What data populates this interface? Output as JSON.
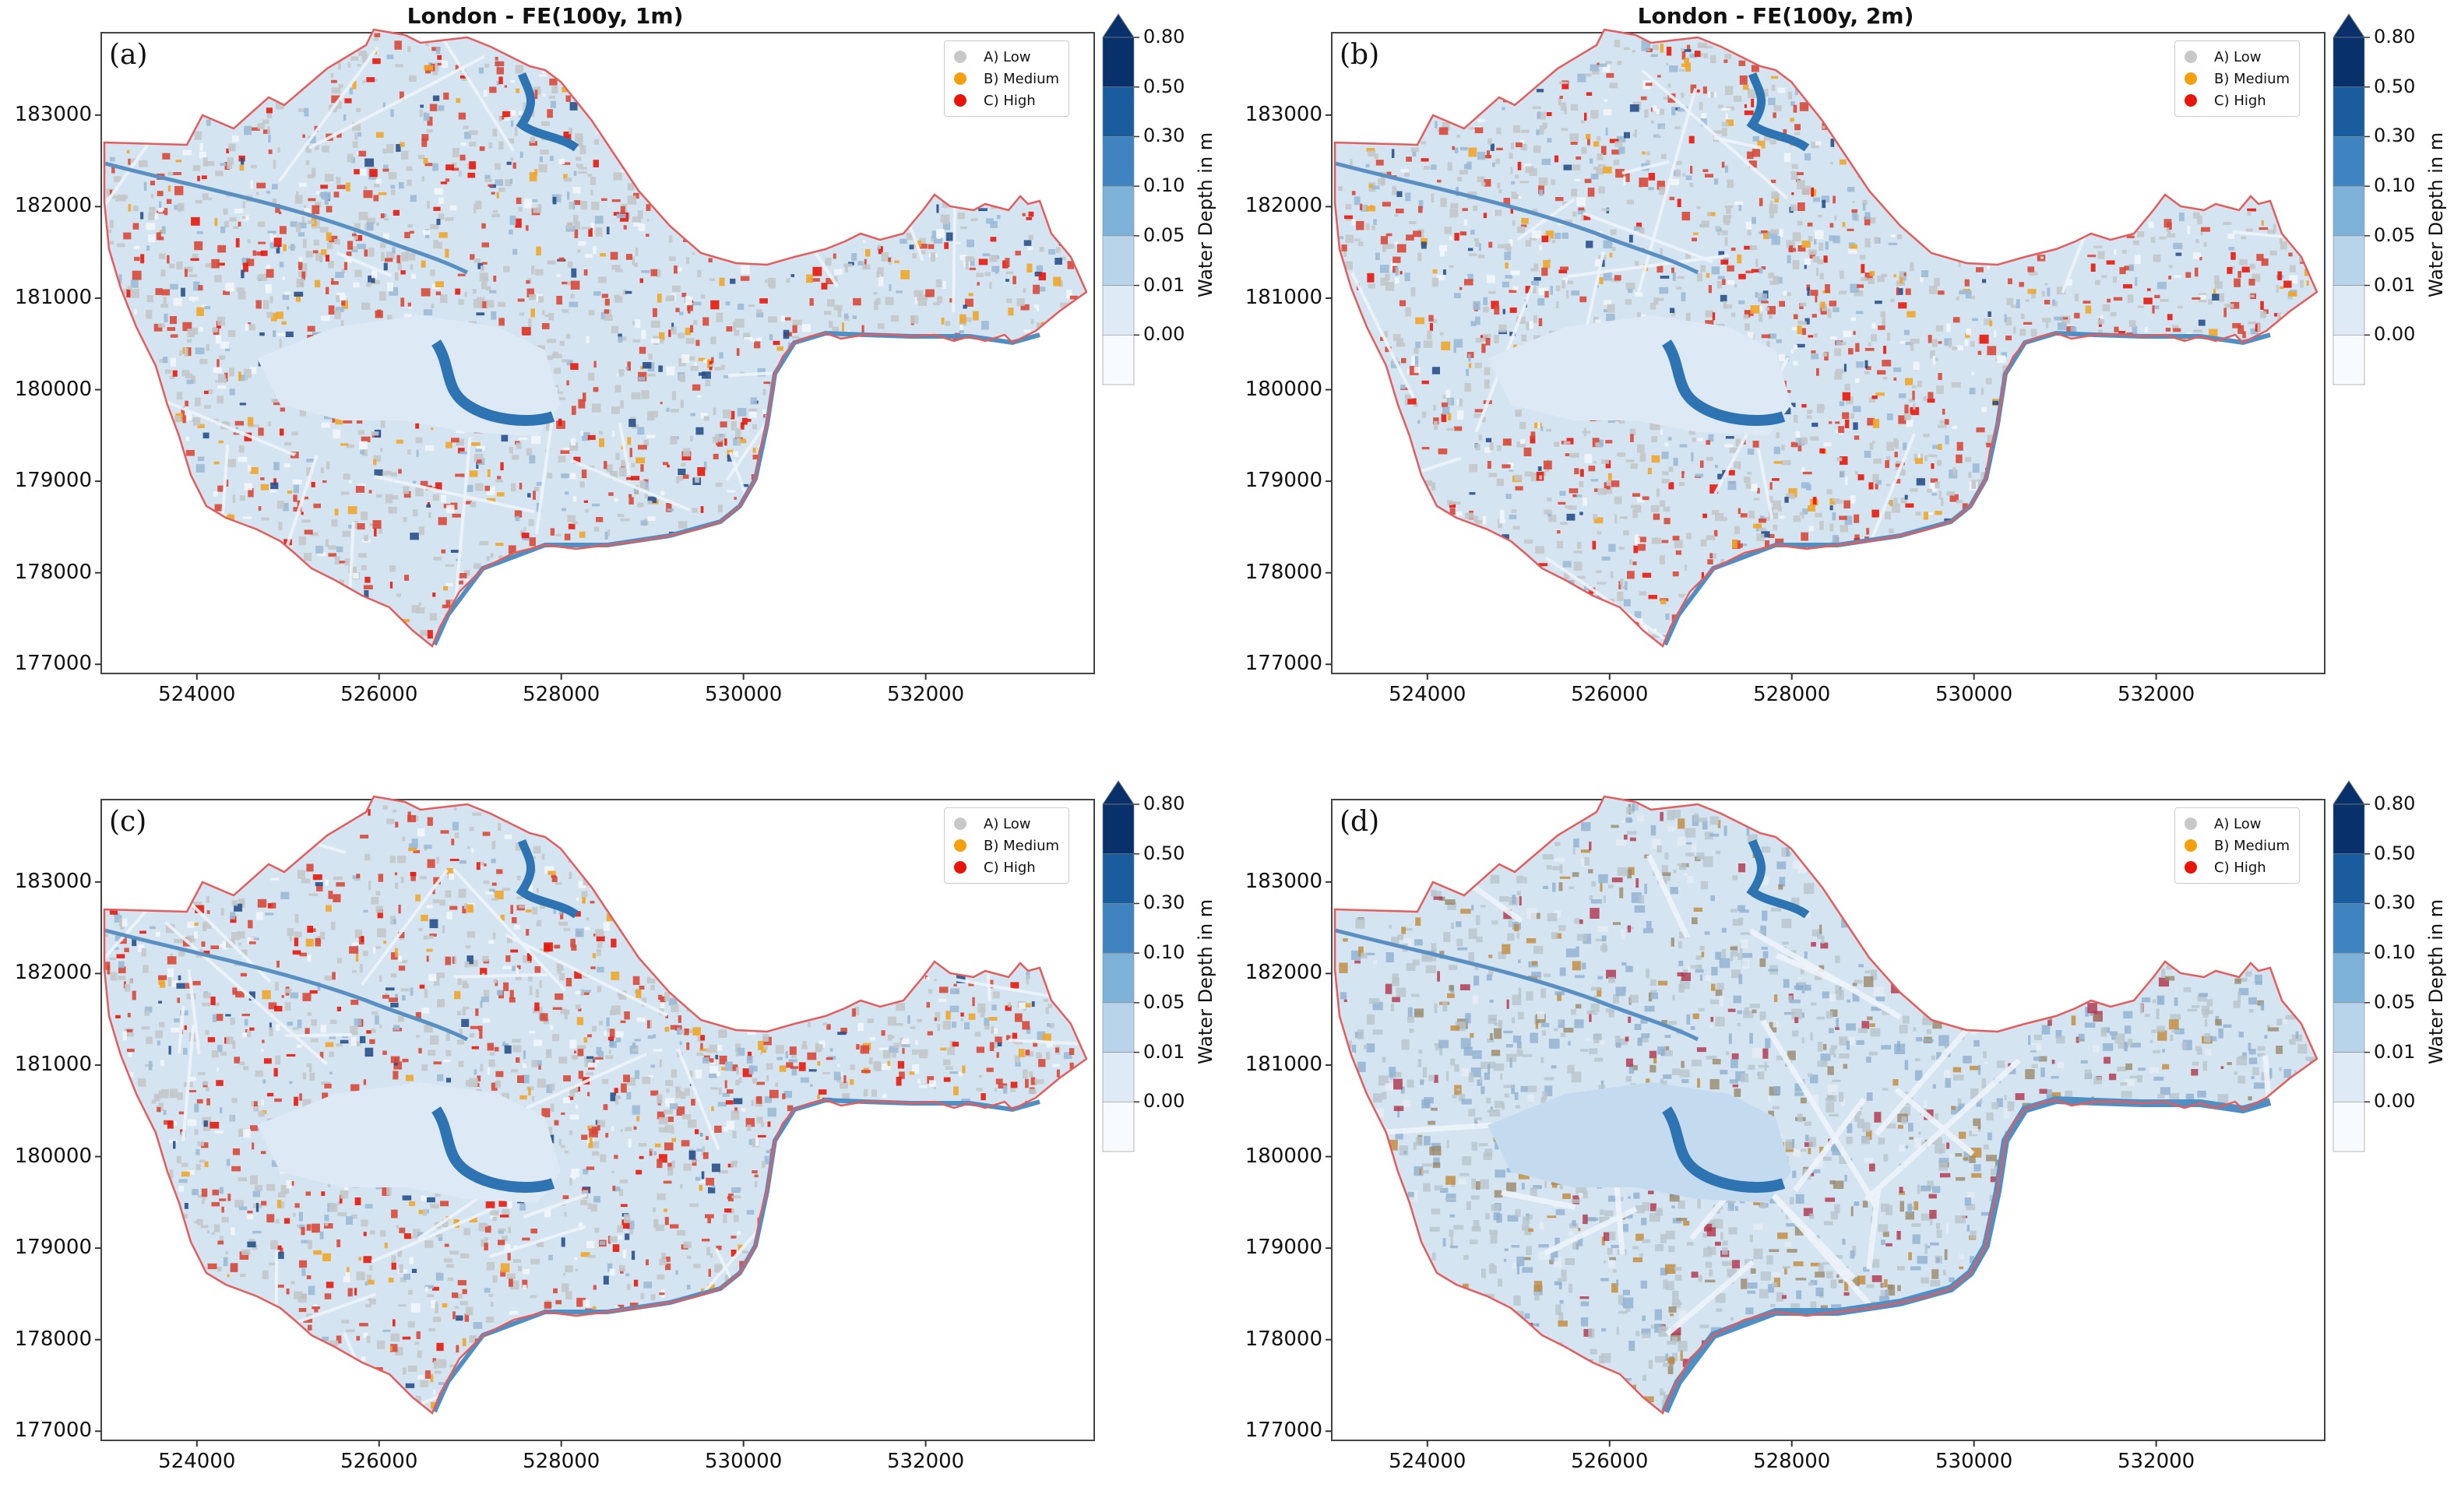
{
  "panels": [
    {
      "id": "a",
      "label": "(a)",
      "title": "London - FE(100y, 1m)",
      "style": "redBuildings"
    },
    {
      "id": "b",
      "label": "(b)",
      "title": "London - FE(100y, 2m)",
      "style": "redBuildings"
    },
    {
      "id": "c",
      "label": "(c)",
      "title": "",
      "style": "redBuildings"
    },
    {
      "id": "d",
      "label": "(d)",
      "title": "",
      "style": "blurred"
    }
  ],
  "legend": [
    {
      "label": "A) Low",
      "color": "#c8c8c8"
    },
    {
      "label": "B) Medium",
      "color": "#f5a00a"
    },
    {
      "label": "C) High",
      "color": "#e8140a"
    }
  ],
  "colorbar": {
    "title": "Water Depth in m",
    "ticks": [
      "0.80",
      "0.50",
      "0.30",
      "0.10",
      "0.05",
      "0.01",
      "0.00"
    ],
    "colors": [
      "#08306b",
      "#1a5d9e",
      "#3f84c0",
      "#7fb2d9",
      "#b7d4ea",
      "#deebf7",
      "#f7fbff"
    ]
  },
  "axes": {
    "xticks": [
      "524000",
      "526000",
      "528000",
      "530000",
      "532000"
    ],
    "yticks": [
      "183000",
      "182000",
      "181000",
      "180000",
      "179000",
      "178000",
      "177000"
    ]
  },
  "colors": {
    "boundary": "#e45c5c",
    "land": "#d4e4f1",
    "river": "#4f8fc4",
    "park": "#c9def0",
    "lake": "#2e73b2"
  }
}
